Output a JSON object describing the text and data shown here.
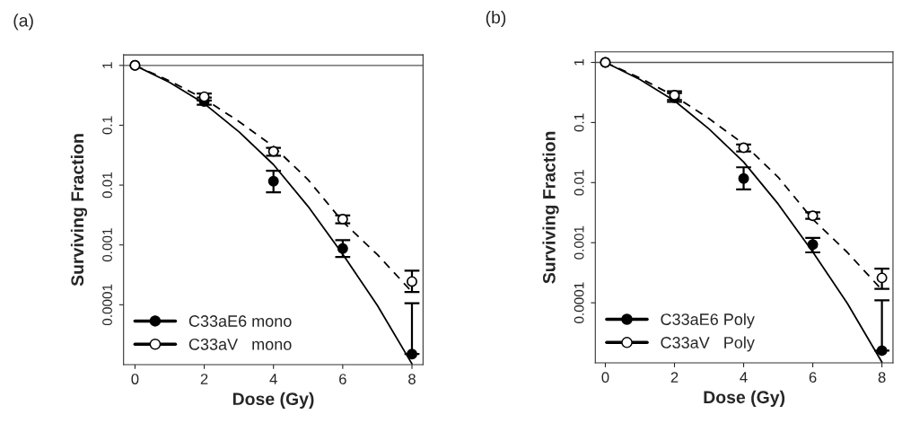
{
  "chart_data": [
    {
      "type": "scatter",
      "title": "(a)",
      "xlabel": "Dose (Gy)",
      "ylabel": "Surviving Fraction",
      "log": "y",
      "xlim": [
        -0.33,
        8.32
      ],
      "ylim": [
        1e-05,
        1.5
      ],
      "xticks": [
        0,
        2,
        4,
        6,
        8
      ],
      "yticks": [
        1,
        0.1,
        0.01,
        0.001,
        0.0001
      ],
      "grid": false,
      "legend": "bottom left",
      "ref_lines": [
        {
          "axis": "y",
          "value": 1,
          "color": "#555555"
        }
      ],
      "series": [
        {
          "name": "C33aE6 mono",
          "marker": "circle",
          "color": "#000000",
          "x": [
            0,
            2,
            4,
            6,
            8
          ],
          "values": [
            1,
            0.25,
            0.0116,
            0.00087,
            1.5e-05
          ],
          "errors": [
            null,
            [
              0.22,
              0.29
            ],
            [
              0.0076,
              0.0174
            ],
            [
              0.00063,
              0.0012
            ],
            [
              1.5e-05,
              0.000106
            ]
          ]
        },
        {
          "name": "C33aV   mono",
          "marker": "circle",
          "color": "#ffffff",
          "x": [
            0,
            2,
            4,
            6,
            8
          ],
          "values": [
            1,
            0.3,
            0.0367,
            0.0027,
            0.000245
          ],
          "errors": [
            null,
            [
              0.26,
              0.34
            ],
            [
              0.031,
              0.042
            ],
            [
              0.0023,
              0.0031
            ],
            [
              0.000164,
              0.00037
            ]
          ]
        },
        {
          "type": "line",
          "color": "#000000",
          "line_style": "solid",
          "x": [
            0,
            1,
            2,
            3,
            4,
            5,
            6,
            7,
            8
          ],
          "values": [
            1,
            0.52,
            0.23,
            0.078,
            0.022,
            0.0044,
            0.0007,
            9.8e-05,
            1.03e-05
          ]
        },
        {
          "type": "line",
          "color": "#000000",
          "line_style": "dashed",
          "x": [
            0,
            1,
            2,
            3,
            4,
            5,
            6,
            7,
            8
          ],
          "values": [
            1,
            0.55,
            0.275,
            0.116,
            0.044,
            0.0123,
            0.00245,
            0.00069,
            0.000164
          ]
        }
      ]
    },
    {
      "type": "scatter",
      "title": "(b)",
      "xlabel": "Dose (Gy)",
      "ylabel": "Surviving Fraction",
      "log": "y",
      "xlim": [
        -0.29,
        8.32
      ],
      "ylim": [
        1e-05,
        1.5
      ],
      "xticks": [
        0,
        2,
        4,
        6,
        8
      ],
      "yticks": [
        1,
        0.1,
        0.01,
        0.001,
        0.0001
      ],
      "grid": false,
      "legend": "bottom left",
      "ref_lines": [
        {
          "axis": "y",
          "value": 1,
          "color": "#555555"
        }
      ],
      "series": [
        {
          "name": "C33aE6 Poly",
          "marker": "circle",
          "color": "#000000",
          "x": [
            0,
            2,
            4,
            6,
            8
          ],
          "values": [
            1,
            0.26,
            0.0117,
            0.00093,
            1.6e-05
          ],
          "errors": [
            null,
            [
              0.22,
              0.31
            ],
            [
              0.0077,
              0.018
            ],
            [
              0.00069,
              0.0012
            ],
            [
              1.6e-05,
              0.00011
            ]
          ]
        },
        {
          "name": "C33aV   Poly",
          "marker": "circle",
          "color": "#ffffff",
          "x": [
            0,
            2,
            4,
            6,
            8
          ],
          "values": [
            1,
            0.285,
            0.038,
            0.0028,
            0.00026
          ],
          "errors": [
            null,
            [
              0.236,
              0.33
            ],
            [
              0.033,
              0.043
            ],
            [
              0.0025,
              0.0032
            ],
            [
              0.00017,
              0.00037
            ]
          ]
        },
        {
          "type": "line",
          "color": "#000000",
          "line_style": "solid",
          "x": [
            0,
            1,
            2,
            3,
            4,
            5,
            6,
            7,
            8
          ],
          "values": [
            1,
            0.52,
            0.23,
            0.078,
            0.022,
            0.0044,
            0.0007,
            9.8e-05,
            1.03e-05
          ]
        },
        {
          "type": "line",
          "color": "#000000",
          "line_style": "dashed",
          "x": [
            0,
            1,
            2,
            3,
            4,
            5,
            6,
            7,
            8
          ],
          "values": [
            1,
            0.55,
            0.275,
            0.116,
            0.044,
            0.0123,
            0.00245,
            0.00069,
            0.000164
          ]
        }
      ]
    }
  ]
}
